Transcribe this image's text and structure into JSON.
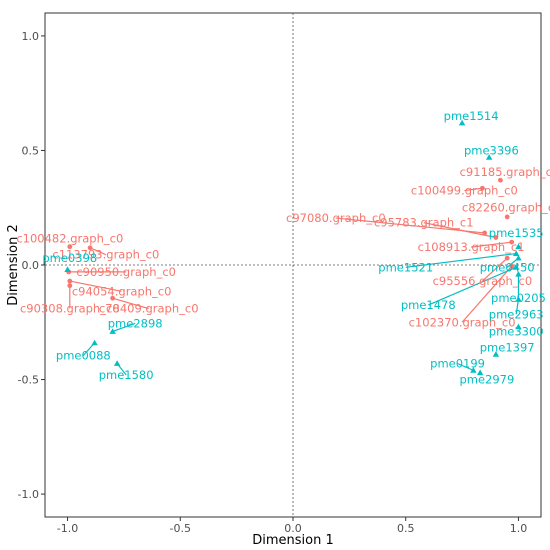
{
  "chart_data": {
    "type": "scatter",
    "xlabel": "Dimension 1",
    "ylabel": "Dimension 2",
    "xlim": [
      -1.1,
      1.1
    ],
    "ylim": [
      -1.1,
      1.1
    ],
    "xticks": [
      "-1.0",
      "-0.5",
      "0.0",
      "0.5",
      "1.0"
    ],
    "yticks": [
      "-1.0",
      "-0.5",
      "0.0",
      "0.5",
      "1.0"
    ],
    "reference_lines": {
      "x": 0,
      "y": 0
    },
    "grid": false,
    "colors": {
      "red": "#F8766D",
      "cyan": "#00BFC4"
    },
    "series": [
      {
        "marker": "circle",
        "color": "#F8766D",
        "points": [
          {
            "label": "c100482.graph_c0",
            "x": -0.99,
            "y": 0.08,
            "lx": -0.99,
            "ly": 0.115
          },
          {
            "label": "c113793.graph_c0",
            "x": -0.9,
            "y": 0.075,
            "lx": -0.83,
            "ly": 0.045
          },
          {
            "label": "c90950.graph_c0",
            "x": -0.995,
            "y": -0.03,
            "lx": -0.74,
            "ly": -0.03
          },
          {
            "label": "c94054.graph_c0",
            "x": -0.99,
            "y": -0.07,
            "lx": -0.76,
            "ly": -0.115
          },
          {
            "label": "c90308.graph_c0",
            "x": -0.99,
            "y": -0.09,
            "lx": -0.99,
            "ly": -0.19
          },
          {
            "label": "c78409.graph_c0",
            "x": -0.8,
            "y": -0.145,
            "lx": -0.64,
            "ly": -0.19
          },
          {
            "label": "c91185.graph_c0",
            "x": 0.92,
            "y": 0.37,
            "lx": 0.96,
            "ly": 0.405
          },
          {
            "label": "c100499.graph_c0",
            "x": 0.84,
            "y": 0.335,
            "lx": 0.76,
            "ly": 0.325
          },
          {
            "label": "c82260.graph_c0",
            "x": 0.95,
            "y": 0.21,
            "lx": 0.97,
            "ly": 0.25
          },
          {
            "label": "c97080.graph_c0",
            "x": 0.85,
            "y": 0.14,
            "lx": 0.19,
            "ly": 0.205
          },
          {
            "label": "c95783.graph_c1",
            "x": 0.9,
            "y": 0.12,
            "lx": 0.58,
            "ly": 0.185
          },
          {
            "label": "c108913.graph_c1",
            "x": 0.97,
            "y": 0.1,
            "lx": 0.79,
            "ly": 0.078
          },
          {
            "label": "c95556.graph_c0",
            "x": 0.95,
            "y": 0.03,
            "lx": 0.84,
            "ly": -0.07
          },
          {
            "label": "c102370.graph_c0",
            "x": 0.97,
            "y": -0.005,
            "lx": 0.75,
            "ly": -0.25
          }
        ]
      },
      {
        "marker": "triangle",
        "color": "#00BFC4",
        "points": [
          {
            "label": "pme0398",
            "x": -1.0,
            "y": -0.02,
            "lx": -0.99,
            "ly": 0.03
          },
          {
            "label": "pme2898",
            "x": -0.8,
            "y": -0.29,
            "lx": -0.7,
            "ly": -0.255
          },
          {
            "label": "pme0088",
            "x": -0.88,
            "y": -0.34,
            "lx": -0.93,
            "ly": -0.395
          },
          {
            "label": "pme1580",
            "x": -0.78,
            "y": -0.43,
            "lx": -0.74,
            "ly": -0.48
          },
          {
            "label": "pme1514",
            "x": 0.75,
            "y": 0.62,
            "lx": 0.79,
            "ly": 0.65
          },
          {
            "label": "pme3396",
            "x": 0.87,
            "y": 0.47,
            "lx": 0.88,
            "ly": 0.5
          },
          {
            "label": "pme1535",
            "x": 1.0,
            "y": 0.08,
            "lx": 0.99,
            "ly": 0.14
          },
          {
            "label": "pme1521",
            "x": 0.99,
            "y": 0.05,
            "lx": 0.5,
            "ly": -0.01
          },
          {
            "label": "pme0450",
            "x": 1.0,
            "y": 0.03,
            "lx": 0.95,
            "ly": -0.01
          },
          {
            "label": "pme1478",
            "x": 0.99,
            "y": -0.01,
            "lx": 0.6,
            "ly": -0.175
          },
          {
            "label": "pme0205",
            "x": 1.0,
            "y": -0.04,
            "lx": 1.0,
            "ly": -0.145
          },
          {
            "label": "pme2963",
            "x": 1.0,
            "y": -0.15,
            "lx": 0.99,
            "ly": -0.215
          },
          {
            "label": "pme3300",
            "x": 1.0,
            "y": -0.27,
            "lx": 0.99,
            "ly": -0.29
          },
          {
            "label": "pme1397",
            "x": 0.9,
            "y": -0.39,
            "lx": 0.95,
            "ly": -0.36
          },
          {
            "label": "pme0199",
            "x": 0.8,
            "y": -0.46,
            "lx": 0.73,
            "ly": -0.43
          },
          {
            "label": "pme2979",
            "x": 0.83,
            "y": -0.47,
            "lx": 0.86,
            "ly": -0.5
          }
        ]
      }
    ]
  }
}
